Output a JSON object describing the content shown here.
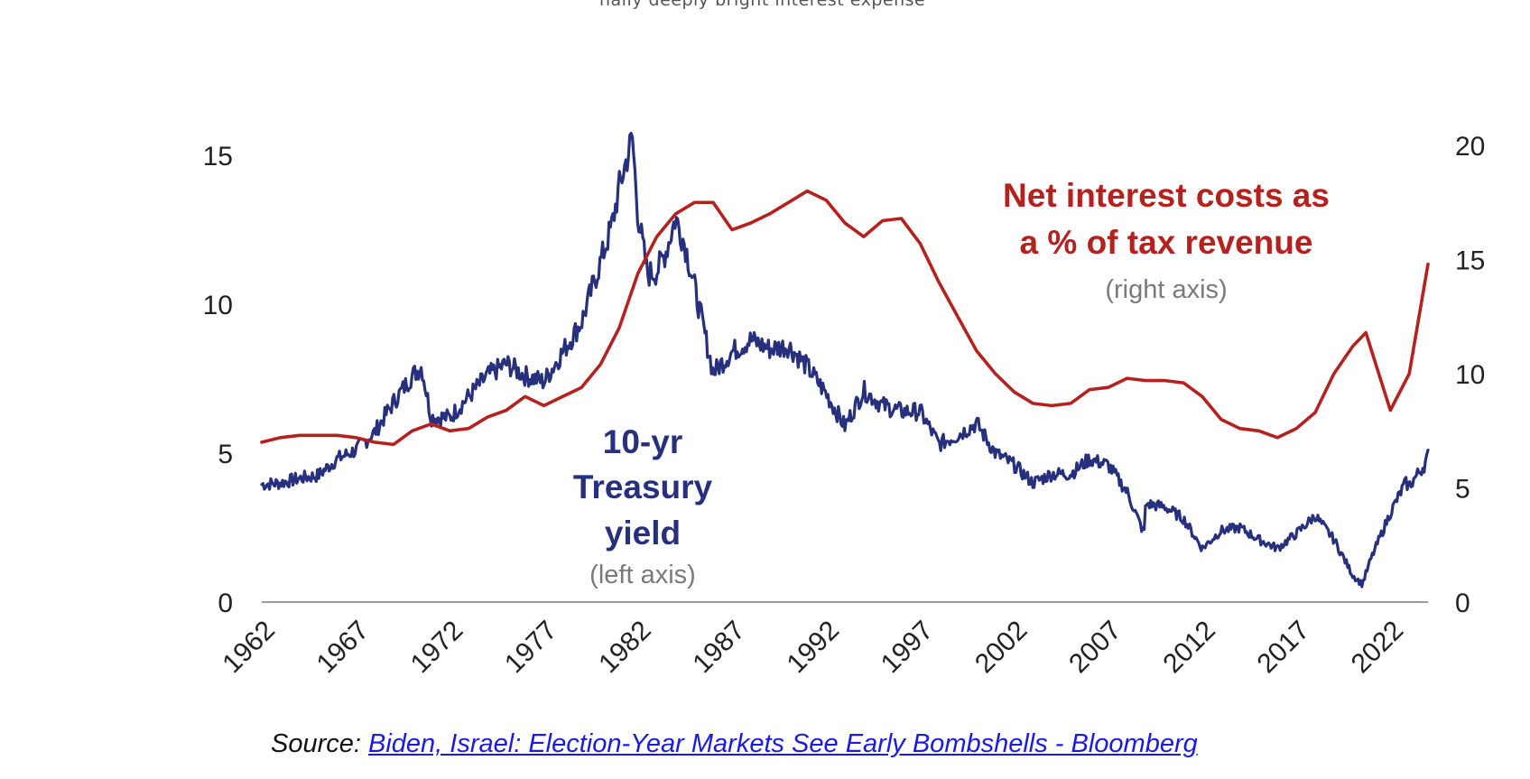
{
  "top_caption": "nally deeply bright interest expense",
  "chart_data": {
    "type": "line",
    "title": "",
    "x_range": [
      1962,
      2024
    ],
    "x_ticks": [
      "1962",
      "1967",
      "1972",
      "1977",
      "1982",
      "1987",
      "1992",
      "1997",
      "2002",
      "2007",
      "2012",
      "2017",
      "2022"
    ],
    "left_axis": {
      "range": [
        0,
        15
      ],
      "ticks": [
        "0",
        "5",
        "10",
        "15"
      ]
    },
    "right_axis": {
      "range": [
        0,
        20
      ],
      "ticks": [
        "0",
        "5",
        "10",
        "15",
        "20"
      ]
    },
    "grid": false,
    "series": [
      {
        "name": "10-yr Treasury yield",
        "axis": "left",
        "color": "#26307d",
        "label_lines": [
          "10-yr",
          "Treasury",
          "yield"
        ],
        "axis_note": "(left axis)",
        "x": [
          1962,
          1963,
          1964,
          1965,
          1966,
          1967,
          1968,
          1969,
          1970,
          1970.5,
          1971,
          1972,
          1973,
          1974,
          1975,
          1976,
          1977,
          1978,
          1979,
          1980,
          1980.6,
          1981,
          1981.7,
          1982,
          1982.5,
          1983,
          1983.5,
          1984,
          1984.5,
          1985,
          1986,
          1987,
          1988,
          1989,
          1990,
          1991,
          1992,
          1993,
          1994,
          1995,
          1996,
          1997,
          1998,
          1999,
          2000,
          2001,
          2002,
          2003,
          2004,
          2005,
          2006,
          2007,
          2008,
          2008.9,
          2009,
          2010,
          2011,
          2012,
          2013,
          2014,
          2015,
          2016,
          2017,
          2018,
          2019,
          2020,
          2020.5,
          2021,
          2022,
          2022.8,
          2023,
          2023.8,
          2024
        ],
        "y": [
          3.95,
          4.0,
          4.15,
          4.25,
          4.8,
          5.1,
          5.7,
          6.7,
          7.6,
          7.9,
          6.2,
          6.2,
          6.9,
          7.6,
          8.0,
          7.6,
          7.4,
          8.4,
          9.4,
          11.4,
          12.6,
          13.9,
          15.6,
          13.0,
          11.0,
          11.1,
          11.8,
          12.9,
          12.0,
          10.6,
          7.7,
          8.4,
          8.8,
          8.5,
          8.6,
          7.9,
          7.0,
          5.9,
          7.1,
          6.6,
          6.4,
          6.4,
          5.3,
          5.6,
          6.0,
          5.0,
          4.6,
          4.0,
          4.3,
          4.3,
          4.8,
          4.6,
          3.7,
          2.3,
          3.3,
          3.2,
          2.8,
          1.8,
          2.4,
          2.5,
          2.1,
          1.8,
          2.3,
          2.9,
          2.1,
          0.9,
          0.6,
          1.5,
          3.0,
          4.0,
          3.9,
          4.6,
          4.9
        ]
      },
      {
        "name": "Net interest costs as a % of tax revenue",
        "axis": "right",
        "color": "#b5211e",
        "label_lines": [
          "Net interest costs as",
          "a % of tax revenue"
        ],
        "axis_note": "(right axis)",
        "x": [
          1962,
          1963,
          1964,
          1965,
          1966,
          1967,
          1968,
          1969,
          1970,
          1971,
          1972,
          1973,
          1974,
          1975,
          1976,
          1977,
          1978,
          1979,
          1980,
          1981,
          1982,
          1983,
          1984,
          1985,
          1986,
          1987,
          1988,
          1989,
          1990,
          1991,
          1992,
          1993,
          1994,
          1995,
          1996,
          1997,
          1998,
          1999,
          2000,
          2001,
          2002,
          2003,
          2004,
          2005,
          2006,
          2007,
          2008,
          2009,
          2010,
          2011,
          2012,
          2013,
          2014,
          2015,
          2016,
          2017,
          2018,
          2019,
          2020,
          2020.7,
          2021,
          2022,
          2023,
          2024
        ],
        "y": [
          7.0,
          7.2,
          7.3,
          7.3,
          7.3,
          7.2,
          7.0,
          6.9,
          7.5,
          7.8,
          7.5,
          7.6,
          8.1,
          8.4,
          9.0,
          8.6,
          9.0,
          9.4,
          10.4,
          12.0,
          14.4,
          16.0,
          17.0,
          17.5,
          17.5,
          16.3,
          16.6,
          17.0,
          17.5,
          18.0,
          17.6,
          16.6,
          16.0,
          16.7,
          16.8,
          15.7,
          14.0,
          12.5,
          11.0,
          10.0,
          9.2,
          8.7,
          8.6,
          8.7,
          9.3,
          9.4,
          9.8,
          9.7,
          9.7,
          9.6,
          9.0,
          8.0,
          7.6,
          7.5,
          7.2,
          7.6,
          8.3,
          10.0,
          11.2,
          11.8,
          11.0,
          8.4,
          10.0,
          14.8
        ]
      }
    ]
  },
  "source": {
    "prefix": "Source:",
    "link_text": "Biden, Israel: Election-Year Markets See Early Bombshells - Bloomberg"
  }
}
